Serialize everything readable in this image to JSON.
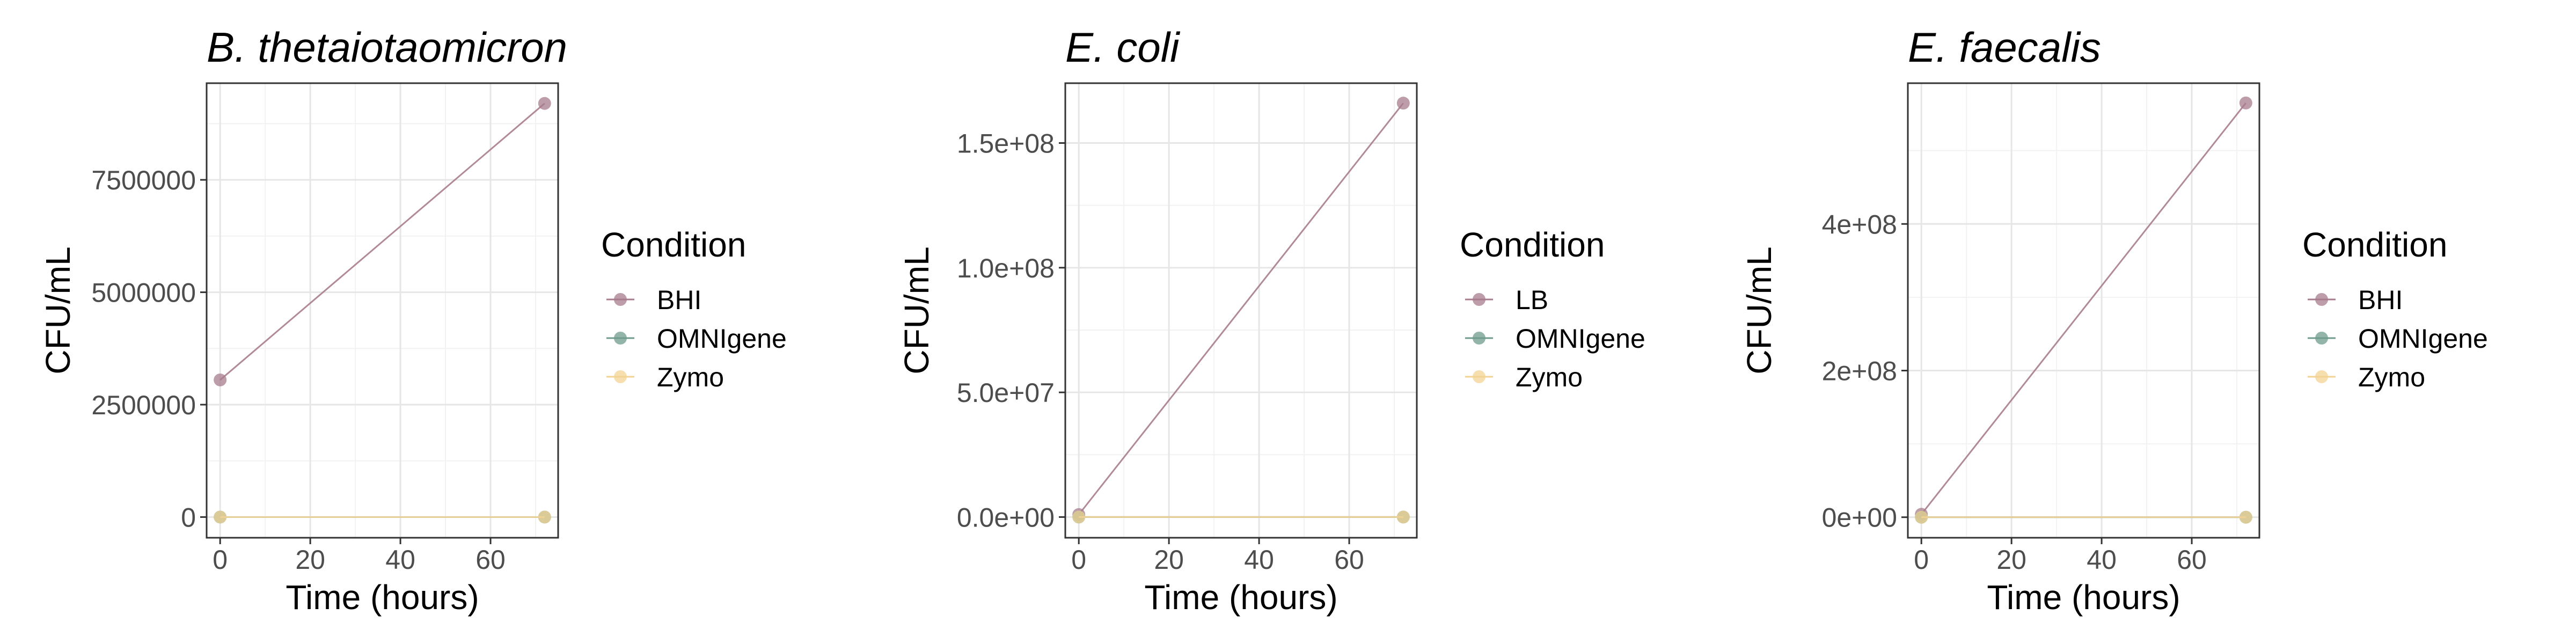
{
  "chart_data": [
    {
      "type": "line",
      "title": "B. thetaiotaomicron",
      "xlabel": "Time (hours)",
      "ylabel": "CFU/mL",
      "xlim": [
        -3,
        75
      ],
      "ylim": [
        -460000,
        9650000
      ],
      "x_ticks": [
        0,
        20,
        40,
        60
      ],
      "x_tick_labels": [
        "0",
        "20",
        "40",
        "60"
      ],
      "y_ticks": [
        0,
        2500000,
        5000000,
        7500000
      ],
      "y_tick_labels": [
        "0",
        "2500000",
        "5000000",
        "7500000"
      ],
      "grid": true,
      "legend_title": "Condition",
      "legend_position": "right",
      "series": [
        {
          "name": "BHI",
          "color": "#A87C8E",
          "x": [
            0,
            72
          ],
          "y": [
            3050000,
            9200000
          ]
        },
        {
          "name": "OMNIgene",
          "color": "#6F9C8C",
          "x": [
            0,
            72
          ],
          "y": [
            0,
            0
          ]
        },
        {
          "name": "Zymo",
          "color": "#F3D394",
          "x": [
            0,
            72
          ],
          "y": [
            0,
            0
          ]
        }
      ]
    },
    {
      "type": "line",
      "title": "E. coli",
      "xlabel": "Time (hours)",
      "ylabel": "CFU/mL",
      "xlim": [
        -3,
        75
      ],
      "ylim": [
        -8300000,
        174000000
      ],
      "x_ticks": [
        0,
        20,
        40,
        60
      ],
      "x_tick_labels": [
        "0",
        "20",
        "40",
        "60"
      ],
      "y_ticks": [
        0,
        50000000,
        100000000,
        150000000
      ],
      "y_tick_labels": [
        "0.0e+00",
        "5.0e+07",
        "1.0e+08",
        "1.5e+08"
      ],
      "grid": true,
      "legend_title": "Condition",
      "legend_position": "right",
      "series": [
        {
          "name": "LB",
          "color": "#A87C8E",
          "x": [
            0,
            72
          ],
          "y": [
            1000000,
            166000000
          ]
        },
        {
          "name": "OMNIgene",
          "color": "#6F9C8C",
          "x": [
            0,
            72
          ],
          "y": [
            0,
            0
          ]
        },
        {
          "name": "Zymo",
          "color": "#F3D394",
          "x": [
            0,
            72
          ],
          "y": [
            0,
            0
          ]
        }
      ]
    },
    {
      "type": "line",
      "title": "E. faecalis",
      "xlabel": "Time (hours)",
      "ylabel": "CFU/mL",
      "xlim": [
        -3,
        75
      ],
      "ylim": [
        -28000000,
        592000000
      ],
      "x_ticks": [
        0,
        20,
        40,
        60
      ],
      "x_tick_labels": [
        "0",
        "20",
        "40",
        "60"
      ],
      "y_ticks": [
        0,
        200000000,
        400000000
      ],
      "y_tick_labels": [
        "0e+00",
        "2e+08",
        "4e+08"
      ],
      "grid": true,
      "legend_title": "Condition",
      "legend_position": "right",
      "series": [
        {
          "name": "BHI",
          "color": "#A87C8E",
          "x": [
            0,
            72
          ],
          "y": [
            4000000,
            565000000
          ]
        },
        {
          "name": "OMNIgene",
          "color": "#6F9C8C",
          "x": [
            0,
            72
          ],
          "y": [
            0,
            0
          ]
        },
        {
          "name": "Zymo",
          "color": "#F3D394",
          "x": [
            0,
            72
          ],
          "y": [
            0,
            0
          ]
        }
      ]
    }
  ]
}
